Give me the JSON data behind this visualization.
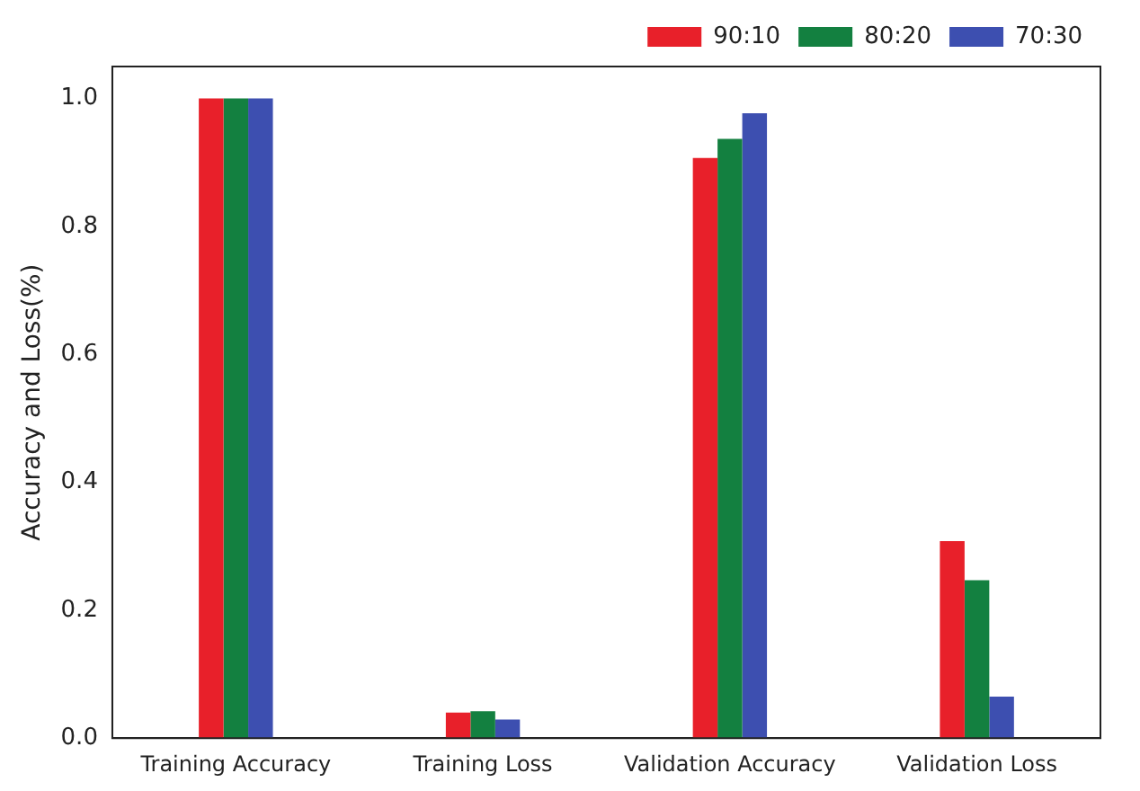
{
  "chart_data": {
    "type": "bar",
    "ylabel": "Accuracy and Loss(%)",
    "categories": [
      "Training Accuracy",
      "Training Loss",
      "Validation Accuracy",
      "Validation Loss"
    ],
    "series": [
      {
        "name": "90:10",
        "color": "#e8202a",
        "values": [
          1.0,
          0.04,
          0.907,
          0.308
        ]
      },
      {
        "name": "80:20",
        "color": "#138040",
        "values": [
          1.0,
          0.042,
          0.937,
          0.247
        ]
      },
      {
        "name": "70:30",
        "color": "#3d4fb0",
        "values": [
          1.0,
          0.029,
          0.977,
          0.065
        ]
      }
    ],
    "ylim": [
      0,
      1.05
    ],
    "yticks": [
      {
        "value": 0,
        "label": "0.0"
      },
      {
        "value": 0.2,
        "label": "0.2"
      },
      {
        "value": 0.4,
        "label": "0.4"
      },
      {
        "value": 0.6,
        "label": "0.6"
      },
      {
        "value": 0.8,
        "label": "0.8"
      },
      {
        "value": 1,
        "label": "1.0"
      }
    ],
    "grid": false,
    "legend": "top right"
  }
}
